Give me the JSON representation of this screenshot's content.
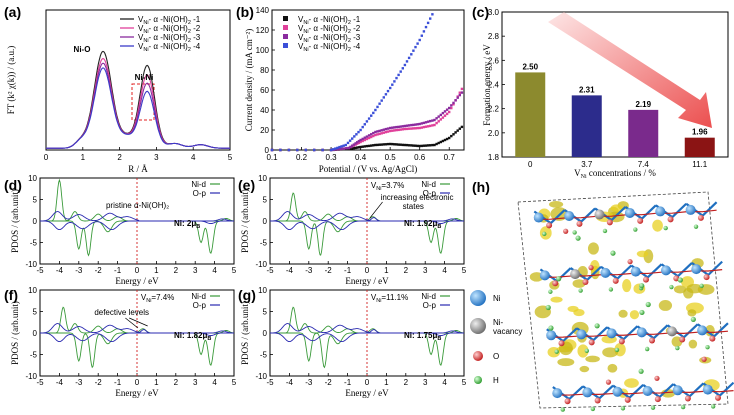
{
  "chart_data": [
    {
      "id": "a",
      "panel_label": "(a)",
      "type": "line",
      "xlabel": "R / Å",
      "ylabel": "FT (k² χ(k)) / (a.u.)",
      "xlim": [
        0,
        5
      ],
      "xticks": [
        "0",
        "1",
        "2",
        "3",
        "4",
        "5"
      ],
      "annotations": [
        "Ni-O",
        "Ni-Ni"
      ],
      "highlight_box": {
        "x": [
          2.45,
          3.05
        ],
        "note": "red dashed box around Ni-Ni peak"
      },
      "series": [
        {
          "name": "V_Ni- α -Ni(OH)2 -1",
          "color": "#222222",
          "peaks": [
            [
              1.55,
              0.82
            ],
            [
              2.75,
              0.7
            ]
          ]
        },
        {
          "name": "V_Ni- α -Ni(OH)2 -2",
          "color": "#e0409a",
          "peaks": [
            [
              1.55,
              0.76
            ],
            [
              2.75,
              0.62
            ]
          ]
        },
        {
          "name": "V_Ni- α -Ni(OH)2 -3",
          "color": "#8a2b9e",
          "peaks": [
            [
              1.55,
              0.72
            ],
            [
              2.75,
              0.55
            ]
          ]
        },
        {
          "name": "V_Ni- α -Ni(OH)2 -4",
          "color": "#3b3bc8",
          "peaks": [
            [
              1.55,
              0.68
            ],
            [
              2.75,
              0.48
            ]
          ]
        }
      ],
      "legend_labels": [
        "V",
        "Ni",
        "- α -Ni(OH)",
        "2",
        " -1",
        " -2",
        " -3",
        " -4"
      ]
    },
    {
      "id": "b",
      "panel_label": "(b)",
      "type": "line",
      "xlabel": "Potential / (V vs. Ag/AgCl)",
      "ylabel": "Current density / (mA cm⁻²)",
      "xlim": [
        0.1,
        0.75
      ],
      "ylim": [
        0,
        140
      ],
      "xticks": [
        "0.1",
        "0.2",
        "0.3",
        "0.4",
        "0.5",
        "0.6",
        "0.7"
      ],
      "yticks": [
        "0",
        "20",
        "40",
        "60",
        "80",
        "100",
        "120",
        "140"
      ],
      "series": [
        {
          "name": "V_Ni- α -Ni(OH)2 -1",
          "color": "#111111",
          "x": [
            0.1,
            0.3,
            0.36,
            0.4,
            0.45,
            0.5,
            0.55,
            0.6,
            0.65,
            0.7,
            0.75
          ],
          "y": [
            0,
            0,
            1,
            3,
            5,
            6,
            5,
            4,
            5,
            12,
            25
          ]
        },
        {
          "name": "V_Ni- α -Ni(OH)2 -2",
          "color": "#e0409a",
          "x": [
            0.1,
            0.3,
            0.36,
            0.4,
            0.45,
            0.5,
            0.55,
            0.6,
            0.65,
            0.7,
            0.75
          ],
          "y": [
            0,
            0,
            2,
            8,
            15,
            19,
            21,
            22,
            25,
            38,
            65
          ]
        },
        {
          "name": "V_Ni- α -Ni(OH)2 -3",
          "color": "#8a2b9e",
          "x": [
            0.1,
            0.3,
            0.36,
            0.4,
            0.45,
            0.5,
            0.55,
            0.6,
            0.65,
            0.7,
            0.75
          ],
          "y": [
            0,
            0,
            2,
            10,
            18,
            22,
            24,
            26,
            30,
            42,
            60
          ]
        },
        {
          "name": "V_Ni- α -Ni(OH)2 -4",
          "color": "#3b4fd8",
          "x": [
            0.1,
            0.3,
            0.35,
            0.4,
            0.45,
            0.5,
            0.55,
            0.6,
            0.65
          ],
          "y": [
            0,
            0,
            5,
            20,
            40,
            62,
            85,
            110,
            140
          ]
        }
      ],
      "legend_labels": [
        "V",
        "Ni",
        "- α -Ni(OH)",
        "2",
        " -1",
        " -2",
        " -3",
        " -4"
      ]
    },
    {
      "id": "c",
      "panel_label": "(c)",
      "type": "bar",
      "xlabel": "V",
      "xlabel_sub": "Ni",
      "xlabel_tail": " concentrations / %",
      "ylabel": "Formation energy / eV",
      "categories": [
        "0",
        "3.7",
        "7.4",
        "11.1"
      ],
      "values": [
        2.5,
        2.31,
        2.19,
        1.96
      ],
      "value_labels": [
        "2.50",
        "2.31",
        "2.19",
        "1.96"
      ],
      "colors": [
        "#8c8a2e",
        "#2c2c8c",
        "#7a2a8c",
        "#8b1414"
      ],
      "ylim": [
        1.8,
        3.0
      ],
      "yticks": [
        "1.8",
        "2.0",
        "2.2",
        "2.4",
        "2.6",
        "2.8",
        "3.0"
      ]
    },
    {
      "id": "d",
      "panel_label": "(d)",
      "type": "line",
      "xlabel": "Energy / eV",
      "ylabel": "PDOS / (arb.unit)",
      "xlim": [
        -5,
        5
      ],
      "ylim": [
        -10,
        10
      ],
      "xticks": [
        "-5",
        "-4",
        "-3",
        "-2",
        "-1",
        "0",
        "1",
        "2",
        "3",
        "4",
        "5"
      ],
      "yticks": [
        "-10",
        "-5",
        "0",
        "5",
        "10"
      ],
      "series": [
        {
          "name": "Ni-d",
          "color": "#3a9a3a"
        },
        {
          "name": "O-p",
          "color": "#2a2ab0"
        }
      ],
      "annotation": "pristine α-Ni(OH)₂",
      "moment_prefix": "Ni: ",
      "moment_value": "2μ",
      "moment_sub": "B"
    },
    {
      "id": "e",
      "panel_label": "(e)",
      "type": "line",
      "xlabel": "Energy / eV",
      "ylabel": "PDOS / (arb.unit)",
      "xlim": [
        -5,
        5
      ],
      "ylim": [
        -10,
        10
      ],
      "xticks": [
        "-5",
        "-4",
        "-3",
        "-2",
        "-1",
        "0",
        "1",
        "2",
        "3",
        "4",
        "5"
      ],
      "yticks": [
        "-10",
        "-5",
        "0",
        "5",
        "10"
      ],
      "series": [
        {
          "name": "Ni-d",
          "color": "#3a9a3a"
        },
        {
          "name": "O-p",
          "color": "#2a2ab0"
        }
      ],
      "concentration_prefix": "V",
      "concentration_sub": "Ni",
      "concentration_value": "=3.7%",
      "annotation_lines": [
        "increasing electronic",
        "states"
      ],
      "moment_prefix": "Ni: ",
      "moment_value": "1.92μ",
      "moment_sub": "B"
    },
    {
      "id": "f",
      "panel_label": "(f)",
      "type": "line",
      "xlabel": "Energy / eV",
      "ylabel": "PDOS / (arb.unit)",
      "xlim": [
        -5,
        5
      ],
      "ylim": [
        -10,
        10
      ],
      "xticks": [
        "-5",
        "-4",
        "-3",
        "-2",
        "-1",
        "0",
        "1",
        "2",
        "3",
        "4",
        "5"
      ],
      "yticks": [
        "-10",
        "-5",
        "0",
        "5",
        "10"
      ],
      "series": [
        {
          "name": "Ni-d",
          "color": "#3a9a3a"
        },
        {
          "name": "O-p",
          "color": "#2a2ab0"
        }
      ],
      "concentration_prefix": "V",
      "concentration_sub": "Ni",
      "concentration_value": "=7.4%",
      "annotation": "defective levels",
      "moment_prefix": "Ni: ",
      "moment_value": "1.82μ",
      "moment_sub": "B"
    },
    {
      "id": "g",
      "panel_label": "(g)",
      "type": "line",
      "xlabel": "Energy / eV",
      "ylabel": "PDOS / (arb.unit)",
      "xlim": [
        -5,
        5
      ],
      "ylim": [
        -10,
        10
      ],
      "xticks": [
        "-5",
        "-4",
        "-3",
        "-2",
        "-1",
        "0",
        "1",
        "2",
        "3",
        "4",
        "5"
      ],
      "yticks": [
        "-10",
        "-5",
        "0",
        "5",
        "10"
      ],
      "series": [
        {
          "name": "Ni-d",
          "color": "#3a9a3a"
        },
        {
          "name": "O-p",
          "color": "#2a2ab0"
        }
      ],
      "concentration_prefix": "V",
      "concentration_sub": "Ni",
      "concentration_value": "=11.1%",
      "moment_prefix": "Ni: ",
      "moment_value": "1.75μ",
      "moment_sub": "B"
    }
  ],
  "structure": {
    "panel_label": "(h)",
    "legend": [
      {
        "label": "Ni",
        "color": "#2a8ad8"
      },
      {
        "label": "Ni-\nvacancy",
        "color": "#8a8a8a"
      },
      {
        "label": "O",
        "color": "#d83030"
      },
      {
        "label": "H",
        "color": "#40c040"
      }
    ]
  }
}
